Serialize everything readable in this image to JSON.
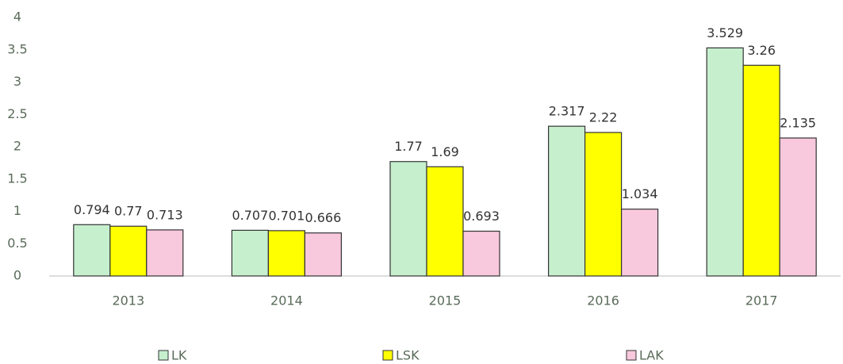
{
  "chart_data": {
    "type": "bar",
    "categories": [
      "2013",
      "2014",
      "2015",
      "2016",
      "2017"
    ],
    "series": [
      {
        "name": "LK",
        "color": "#c6efce",
        "values": [
          0.794,
          0.707,
          1.77,
          2.317,
          3.529
        ]
      },
      {
        "name": "LSK",
        "color": "#ffff00",
        "values": [
          0.77,
          0.701,
          1.69,
          2.22,
          3.26
        ]
      },
      {
        "name": "LAK",
        "color": "#f8c8dc",
        "values": [
          0.713,
          0.666,
          0.693,
          1.034,
          2.135
        ]
      }
    ],
    "ylim": [
      0,
      4
    ],
    "yticks": [
      0,
      0.5,
      1,
      1.5,
      2,
      2.5,
      3,
      3.5,
      4
    ],
    "grid": false,
    "legend": "bottom"
  }
}
